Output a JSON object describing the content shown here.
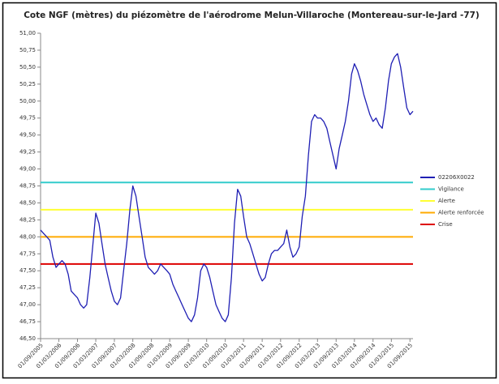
{
  "chart_data": {
    "type": "line",
    "title": "Cote NGF (mètres) du piézomètre de l'aérodrome Melun-Villaroche (Montereau-sur-le-Jard -77)",
    "x": [
      "01/09/2005",
      "01/10/2005",
      "01/11/2005",
      "01/12/2005",
      "01/01/2006",
      "01/02/2006",
      "01/03/2006",
      "01/04/2006",
      "01/05/2006",
      "01/06/2006",
      "01/07/2006",
      "01/08/2006",
      "01/09/2006",
      "01/10/2006",
      "01/11/2006",
      "01/12/2006",
      "01/01/2007",
      "01/02/2007",
      "01/03/2007",
      "01/04/2007",
      "01/05/2007",
      "01/06/2007",
      "01/07/2007",
      "01/08/2007",
      "01/09/2007",
      "01/10/2007",
      "01/11/2007",
      "01/12/2007",
      "01/01/2008",
      "01/02/2008",
      "01/03/2008",
      "01/04/2008",
      "01/05/2008",
      "01/06/2008",
      "01/07/2008",
      "01/08/2008",
      "01/09/2008",
      "01/10/2008",
      "01/11/2008",
      "01/12/2008",
      "01/01/2009",
      "01/02/2009",
      "01/03/2009",
      "01/04/2009",
      "01/05/2009",
      "01/06/2009",
      "01/07/2009",
      "01/08/2009",
      "01/09/2009",
      "01/10/2009",
      "01/11/2009",
      "01/12/2009",
      "01/01/2010",
      "01/02/2010",
      "01/03/2010",
      "01/04/2010",
      "01/05/2010",
      "01/06/2010",
      "01/07/2010",
      "01/08/2010",
      "01/09/2010",
      "01/10/2010",
      "01/11/2010",
      "01/12/2010",
      "01/01/2011",
      "01/02/2011",
      "01/03/2011",
      "01/04/2011",
      "01/05/2011",
      "01/06/2011",
      "01/07/2011",
      "01/08/2011",
      "01/09/2011",
      "01/10/2011",
      "01/11/2011",
      "01/12/2011",
      "01/01/2012",
      "01/02/2012",
      "01/03/2012",
      "01/04/2012",
      "01/05/2012",
      "01/06/2012",
      "01/07/2012",
      "01/08/2012",
      "01/09/2012",
      "01/10/2012",
      "01/11/2012",
      "01/12/2012",
      "01/01/2013",
      "01/02/2013",
      "01/03/2013",
      "01/04/2013",
      "01/05/2013",
      "01/06/2013",
      "01/07/2013",
      "01/08/2013",
      "01/09/2013",
      "01/10/2013",
      "01/11/2013",
      "01/12/2013",
      "01/01/2014",
      "01/02/2014",
      "01/03/2014",
      "01/04/2014",
      "01/05/2014",
      "01/06/2014",
      "01/07/2014",
      "01/08/2014",
      "01/09/2014",
      "01/10/2014",
      "01/11/2014",
      "01/12/2014",
      "01/01/2015",
      "01/02/2015",
      "01/03/2015",
      "01/04/2015",
      "01/05/2015",
      "01/06/2015",
      "01/07/2015",
      "01/08/2015",
      "01/09/2015",
      "01/10/2015"
    ],
    "series": [
      {
        "name": "02206X0022",
        "color": "#1f1fb4",
        "values": [
          48.1,
          48.05,
          48.0,
          47.95,
          47.7,
          47.55,
          47.6,
          47.65,
          47.6,
          47.45,
          47.2,
          47.15,
          47.1,
          47.0,
          46.95,
          47.0,
          47.4,
          47.9,
          48.35,
          48.2,
          47.9,
          47.6,
          47.4,
          47.2,
          47.05,
          47.0,
          47.1,
          47.5,
          47.9,
          48.4,
          48.75,
          48.6,
          48.3,
          48.0,
          47.7,
          47.55,
          47.5,
          47.45,
          47.5,
          47.6,
          47.55,
          47.5,
          47.45,
          47.3,
          47.2,
          47.1,
          47.0,
          46.9,
          46.8,
          46.75,
          46.85,
          47.1,
          47.5,
          47.6,
          47.55,
          47.4,
          47.2,
          47.0,
          46.9,
          46.8,
          46.75,
          46.85,
          47.4,
          48.2,
          48.7,
          48.6,
          48.3,
          48.0,
          47.9,
          47.75,
          47.6,
          47.45,
          47.35,
          47.4,
          47.6,
          47.75,
          47.8,
          47.8,
          47.85,
          47.9,
          48.1,
          47.85,
          47.7,
          47.75,
          47.85,
          48.3,
          48.6,
          49.2,
          49.7,
          49.8,
          49.75,
          49.75,
          49.7,
          49.6,
          49.4,
          49.2,
          49.0,
          49.3,
          49.5,
          49.7,
          50.0,
          50.4,
          50.55,
          50.45,
          50.3,
          50.1,
          49.95,
          49.8,
          49.7,
          49.75,
          49.65,
          49.6,
          49.9,
          50.3,
          50.55,
          50.65,
          50.7,
          50.5,
          50.2,
          49.9,
          49.8,
          49.85
        ]
      }
    ],
    "reference_lines": [
      {
        "name": "Vigilance",
        "color": "#33cccc",
        "value": 48.8
      },
      {
        "name": "Alerte",
        "color": "#ffff33",
        "value": 48.4
      },
      {
        "name": "Alerte renforcée",
        "color": "#ffaa00",
        "value": 48.0
      },
      {
        "name": "Crise",
        "color": "#dd0000",
        "value": 47.6
      }
    ],
    "xlim": [
      "01/09/2005",
      "01/10/2015"
    ],
    "xticks": [
      "01/09/2005",
      "01/03/2006",
      "01/09/2006",
      "01/03/2007",
      "01/09/2007",
      "01/03/2008",
      "01/09/2008",
      "01/03/2009",
      "01/09/2009",
      "01/03/2010",
      "01/09/2010",
      "01/03/2011",
      "01/09/2011",
      "01/03/2012",
      "01/09/2012",
      "01/03/2013",
      "01/09/2013",
      "01/03/2014",
      "01/09/2014",
      "01/03/2015",
      "01/09/2015"
    ],
    "ylim": [
      46.5,
      51
    ],
    "yticks": [
      {
        "value": 46.5,
        "label": "46,50"
      },
      {
        "value": 46.75,
        "label": "46,75"
      },
      {
        "value": 47,
        "label": "47,00"
      },
      {
        "value": 47.25,
        "label": "47,25"
      },
      {
        "value": 47.5,
        "label": "47,50"
      },
      {
        "value": 47.75,
        "label": "47,75"
      },
      {
        "value": 48,
        "label": "48,00"
      },
      {
        "value": 48.25,
        "label": "48,25"
      },
      {
        "value": 48.5,
        "label": "48,50"
      },
      {
        "value": 48.75,
        "label": "48,75"
      },
      {
        "value": 49,
        "label": "49,00"
      },
      {
        "value": 49.25,
        "label": "49,25"
      },
      {
        "value": 49.5,
        "label": "49,50"
      },
      {
        "value": 49.75,
        "label": "49,75"
      },
      {
        "value": 50,
        "label": "50,00"
      },
      {
        "value": 50.25,
        "label": "50,25"
      },
      {
        "value": 50.5,
        "label": "50,50"
      },
      {
        "value": 50.75,
        "label": "50,75"
      },
      {
        "value": 51,
        "label": "51,00"
      }
    ],
    "legend": "right"
  }
}
